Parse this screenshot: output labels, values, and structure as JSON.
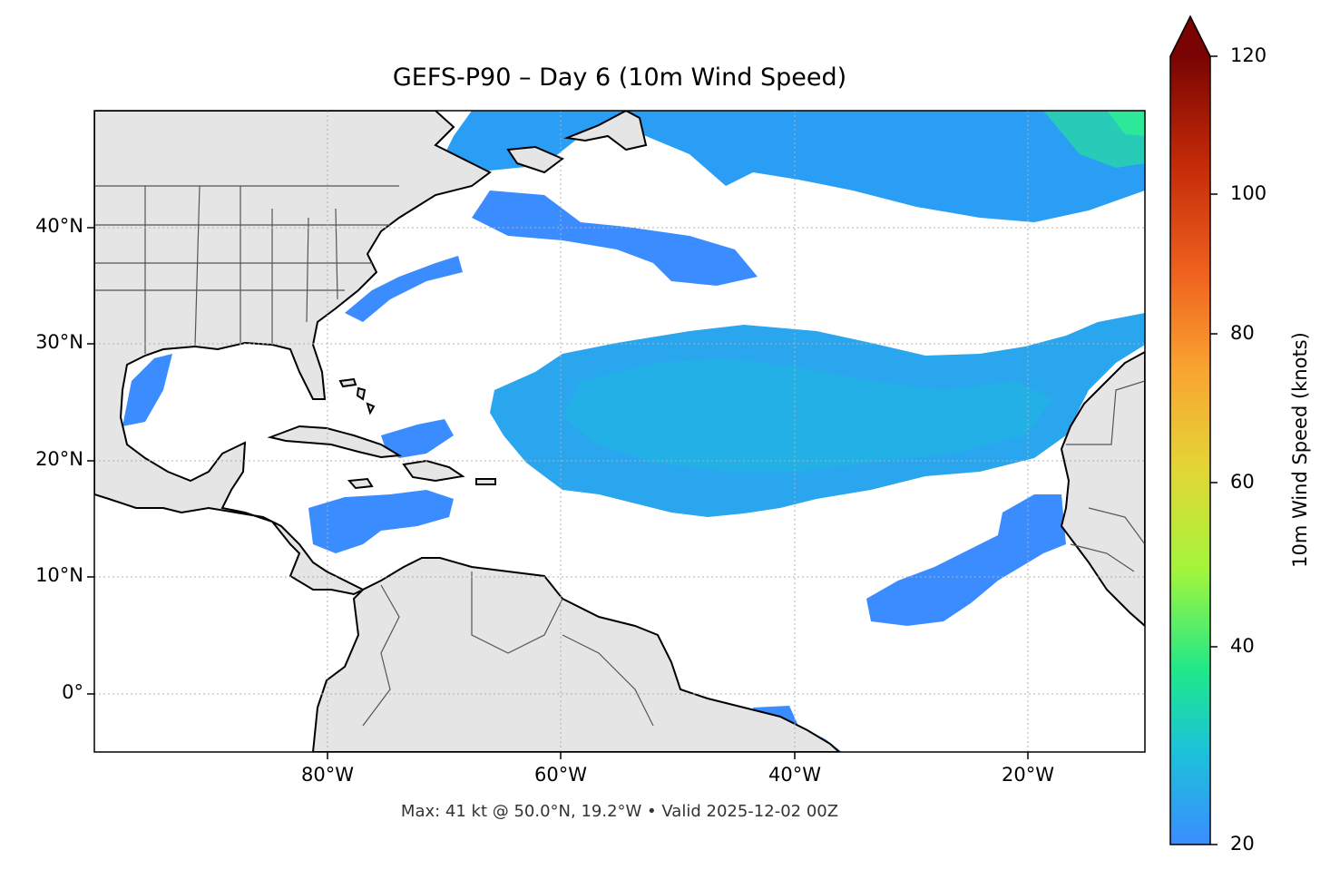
{
  "title": "GEFS-P90 – Day 6 (10m Wind Speed)",
  "subtitle": "Max: 41 kt @ 50.0°N, 19.2°W • Valid 2025-12-02 00Z",
  "map": {
    "lon_range": [
      -100,
      -10
    ],
    "lat_range": [
      -5,
      50
    ],
    "gridlines": true,
    "land_color": "#e5e5e5",
    "ocean_color": "#ffffff",
    "lat_ticks": [
      {
        "value": 40,
        "label": "40°N"
      },
      {
        "value": 30,
        "label": "30°N"
      },
      {
        "value": 20,
        "label": "20°N"
      },
      {
        "value": 10,
        "label": "10°N"
      },
      {
        "value": 0,
        "label": "0°"
      }
    ],
    "lon_ticks": [
      {
        "value": -80,
        "label": "80°W"
      },
      {
        "value": -60,
        "label": "60°W"
      },
      {
        "value": -40,
        "label": "40°W"
      },
      {
        "value": -20,
        "label": "20°W"
      }
    ]
  },
  "colorbar": {
    "label": "10m Wind Speed (knots)",
    "min": 20,
    "max": 120,
    "extend": "max",
    "colormap": "turbo",
    "ticks": [
      {
        "value": 20,
        "label": "20"
      },
      {
        "value": 40,
        "label": "40"
      },
      {
        "value": 60,
        "label": "60"
      },
      {
        "value": 80,
        "label": "80"
      },
      {
        "value": 100,
        "label": "100"
      },
      {
        "value": 120,
        "label": "120"
      }
    ],
    "colors": [
      "#3b8cff",
      "#1bc3d9",
      "#1fe88a",
      "#a4f53a",
      "#e4d436",
      "#f9a531",
      "#f0641f",
      "#c52b08",
      "#7a0403"
    ]
  }
}
